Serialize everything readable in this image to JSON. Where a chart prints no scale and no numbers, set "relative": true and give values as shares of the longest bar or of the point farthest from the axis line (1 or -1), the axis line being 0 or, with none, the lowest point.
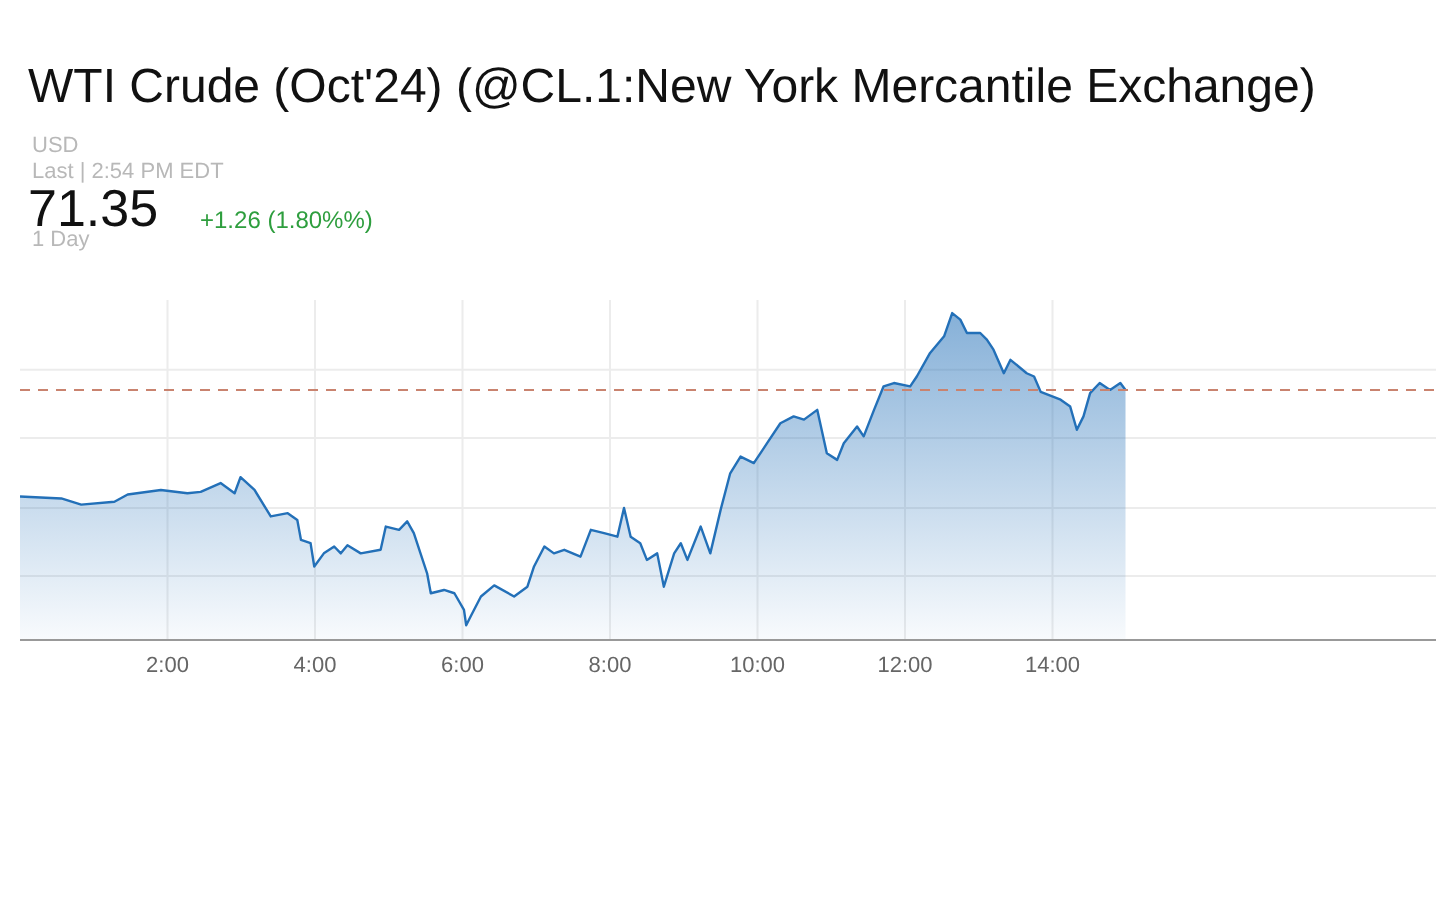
{
  "chart_data": {
    "type": "area",
    "title": "WTI Crude (Oct'24) (@CL.1:New York Mercantile Exchange)",
    "annotations": [
      "USD",
      "Last | 2:54 PM EDT",
      "71.35",
      "+1.26 (1.80%%)",
      "1 Day"
    ],
    "relative": true,
    "xlim": [
      0,
      19.2
    ],
    "xticks": [
      {
        "value": 2,
        "label": "2:00"
      },
      {
        "value": 4,
        "label": "4:00"
      },
      {
        "value": 6,
        "label": "6:00"
      },
      {
        "value": 8,
        "label": "8:00"
      },
      {
        "value": 10,
        "label": "10:00"
      },
      {
        "value": 12,
        "label": "12:00"
      },
      {
        "value": 14,
        "label": "14:00"
      }
    ],
    "grid": true,
    "line_style": "solid",
    "ref_lines": [
      {
        "axis": "y",
        "value": 0.765,
        "label": null,
        "color": "#c9836f",
        "line_style": "dashed"
      }
    ],
    "series": [
      {
        "color": "#2370b8",
        "x": [
          0,
          0.56,
          0.83,
          1.28,
          1.46,
          1.91,
          2.27,
          2.45,
          2.72,
          2.91,
          2.99,
          3.18,
          3.4,
          3.63,
          3.76,
          3.81,
          3.94,
          3.99,
          4.12,
          4.26,
          4.35,
          4.44,
          4.62,
          4.89,
          4.96,
          5.14,
          5.25,
          5.34,
          5.52,
          5.57,
          5.75,
          5.89,
          6.02,
          6.05,
          6.11,
          6.25,
          6.43,
          6.7,
          6.88,
          6.97,
          7.11,
          7.24,
          7.38,
          7.6,
          7.74,
          7.92,
          8.1,
          8.19,
          8.28,
          8.41,
          8.5,
          8.64,
          8.73,
          8.87,
          8.96,
          9.05,
          9.23,
          9.36,
          9.5,
          9.63,
          9.77,
          9.95,
          10.13,
          10.31,
          10.49,
          10.63,
          10.81,
          10.94,
          11.08,
          11.17,
          11.35,
          11.44,
          11.58,
          11.71,
          11.85,
          12.07,
          12.16,
          12.34,
          12.53,
          12.64,
          12.75,
          12.84,
          13.02,
          13.11,
          13.2,
          13.34,
          13.43,
          13.65,
          13.75,
          13.84,
          14.11,
          14.24,
          14.33,
          14.42,
          14.51,
          14.64,
          14.78,
          14.92,
          14.99
        ],
        "values": [
          0.439,
          0.433,
          0.414,
          0.423,
          0.445,
          0.459,
          0.449,
          0.453,
          0.48,
          0.449,
          0.498,
          0.459,
          0.378,
          0.388,
          0.367,
          0.306,
          0.296,
          0.225,
          0.265,
          0.286,
          0.265,
          0.29,
          0.265,
          0.276,
          0.347,
          0.337,
          0.363,
          0.327,
          0.204,
          0.143,
          0.153,
          0.143,
          0.092,
          0.045,
          0.072,
          0.133,
          0.167,
          0.133,
          0.163,
          0.225,
          0.286,
          0.265,
          0.276,
          0.255,
          0.337,
          0.327,
          0.316,
          0.404,
          0.316,
          0.296,
          0.245,
          0.265,
          0.163,
          0.265,
          0.296,
          0.245,
          0.347,
          0.265,
          0.398,
          0.51,
          0.561,
          0.541,
          0.602,
          0.663,
          0.684,
          0.674,
          0.704,
          0.571,
          0.551,
          0.602,
          0.653,
          0.623,
          0.704,
          0.776,
          0.786,
          0.776,
          0.806,
          0.878,
          0.929,
          1,
          0.98,
          0.939,
          0.939,
          0.919,
          0.888,
          0.816,
          0.857,
          0.816,
          0.806,
          0.759,
          0.735,
          0.714,
          0.643,
          0.684,
          0.755,
          0.786,
          0.765,
          0.786,
          0.765
        ]
      }
    ]
  }
}
